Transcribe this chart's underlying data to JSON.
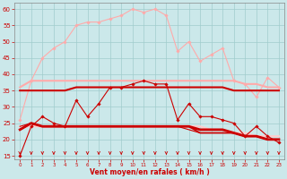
{
  "x": [
    0,
    1,
    2,
    3,
    4,
    5,
    6,
    7,
    8,
    9,
    10,
    11,
    12,
    13,
    14,
    15,
    16,
    17,
    18,
    19,
    20,
    21,
    22,
    23
  ],
  "background_color": "#cbe8ea",
  "grid_color": "#a0cccc",
  "xlabel": "Vent moyen/en rafales ( km/h )",
  "xlabel_color": "#cc0000",
  "tick_color": "#cc0000",
  "ylim": [
    14,
    62
  ],
  "yticks": [
    15,
    20,
    25,
    30,
    35,
    40,
    45,
    50,
    55,
    60
  ],
  "series": [
    {
      "name": "gust_light",
      "color": "#ffaaaa",
      "linewidth": 0.8,
      "marker": "D",
      "markersize": 1.8,
      "data": [
        26,
        38,
        45,
        48,
        50,
        55,
        56,
        56,
        57,
        58,
        60,
        59,
        60,
        58,
        47,
        50,
        44,
        46,
        48,
        38,
        37,
        33,
        39,
        36
      ]
    },
    {
      "name": "gust_mid_light",
      "color": "#ffaaaa",
      "linewidth": 1.5,
      "marker": null,
      "markersize": 0,
      "data": [
        36,
        38,
        38,
        38,
        38,
        38,
        38,
        38,
        38,
        38,
        38,
        38,
        38,
        38,
        38,
        38,
        38,
        38,
        38,
        38,
        37,
        37,
        36,
        36
      ]
    },
    {
      "name": "mean_light",
      "color": "#ffcccc",
      "linewidth": 1.5,
      "marker": null,
      "markersize": 0,
      "data": [
        24,
        24,
        24,
        24,
        24,
        24,
        24,
        24,
        24,
        24,
        24,
        24,
        24,
        24,
        24,
        24,
        24,
        23,
        23,
        22,
        22,
        21,
        21,
        21
      ]
    },
    {
      "name": "gust_dark",
      "color": "#cc0000",
      "linewidth": 0.8,
      "marker": "D",
      "markersize": 1.8,
      "data": [
        15,
        24,
        27,
        25,
        24,
        32,
        27,
        31,
        36,
        36,
        37,
        38,
        37,
        37,
        26,
        31,
        27,
        27,
        26,
        25,
        21,
        24,
        21,
        19
      ]
    },
    {
      "name": "gust_mid_dark",
      "color": "#cc0000",
      "linewidth": 1.5,
      "marker": null,
      "markersize": 0,
      "data": [
        35,
        35,
        35,
        35,
        35,
        36,
        36,
        36,
        36,
        36,
        36,
        36,
        36,
        36,
        36,
        36,
        36,
        36,
        36,
        35,
        35,
        35,
        35,
        35
      ]
    },
    {
      "name": "mean_dark",
      "color": "#cc0000",
      "linewidth": 2.0,
      "marker": null,
      "markersize": 0,
      "data": [
        23,
        25,
        24,
        24,
        24,
        24,
        24,
        24,
        24,
        24,
        24,
        24,
        24,
        24,
        24,
        24,
        23,
        23,
        23,
        22,
        21,
        21,
        20,
        20
      ]
    },
    {
      "name": "mean_dark2",
      "color": "#cc0000",
      "linewidth": 1.2,
      "marker": null,
      "markersize": 0,
      "data": [
        23,
        25,
        24,
        24,
        24,
        24,
        24,
        24,
        24,
        24,
        24,
        24,
        24,
        24,
        24,
        24,
        22,
        22,
        22,
        22,
        21,
        21,
        20,
        20
      ]
    },
    {
      "name": "mean_dark3",
      "color": "#cc0000",
      "linewidth": 0.8,
      "marker": null,
      "markersize": 0,
      "data": [
        24,
        25,
        24,
        24,
        24,
        24,
        24,
        24,
        24,
        24,
        24,
        24,
        24,
        24,
        24,
        23,
        22,
        22,
        22,
        22,
        21,
        21,
        20,
        20
      ]
    }
  ],
  "arrow_color": "#cc0000"
}
